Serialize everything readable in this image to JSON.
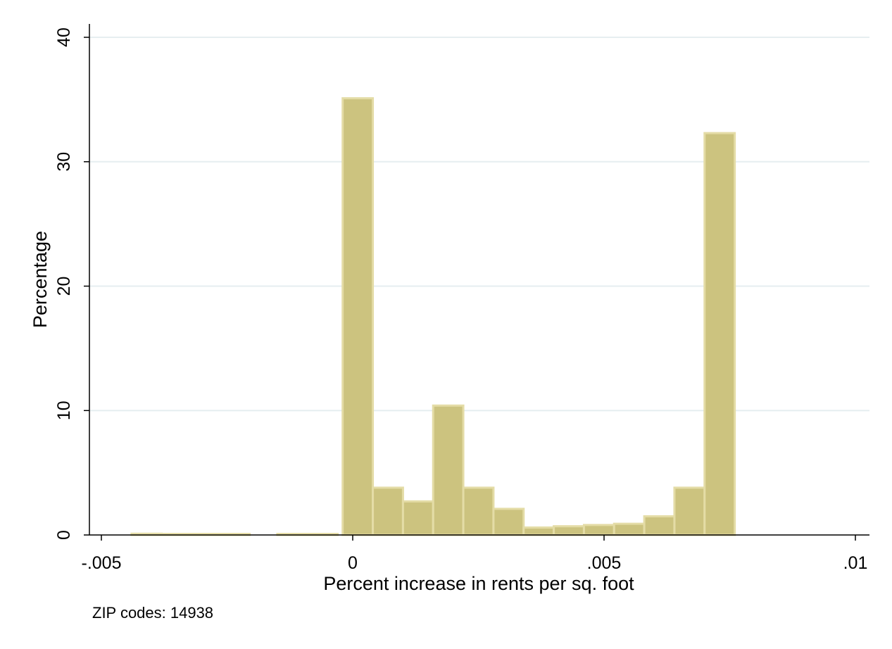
{
  "chart_data": {
    "type": "bar",
    "subtype": "histogram",
    "xlabel": "Percent increase in rents per sq. foot",
    "ylabel": "Percentage",
    "note": "ZIP codes: 14938",
    "xlim": [
      -0.0055,
      0.0102
    ],
    "ylim": [
      0,
      40
    ],
    "x_ticks": [
      {
        "value": -0.005,
        "label": "-.005"
      },
      {
        "value": 0,
        "label": "0"
      },
      {
        "value": 0.005,
        "label": ".005"
      },
      {
        "value": 0.01,
        "label": ".01"
      }
    ],
    "y_ticks": [
      {
        "value": 0,
        "label": "0"
      },
      {
        "value": 10,
        "label": "10"
      },
      {
        "value": 20,
        "label": "20"
      },
      {
        "value": 30,
        "label": "30"
      },
      {
        "value": 40,
        "label": "40"
      }
    ],
    "grid": true,
    "bar_fill": "#ccc37f",
    "bar_edge": "#e4dca6",
    "bins": [
      {
        "x0": -0.0044,
        "x1": -0.0038,
        "value": 0.1
      },
      {
        "x0": -0.0038,
        "x1": -0.0032,
        "value": 0.05
      },
      {
        "x0": -0.0032,
        "x1": -0.0026,
        "value": 0.05
      },
      {
        "x0": -0.0026,
        "x1": -0.00205,
        "value": 0.05
      },
      {
        "x0": -0.0015,
        "x1": -0.0009,
        "value": 0.05
      },
      {
        "x0": -0.0009,
        "x1": -0.0003,
        "value": 0.05
      },
      {
        "x0": -0.0002,
        "x1": 0.0004,
        "value": 35.1
      },
      {
        "x0": 0.0004,
        "x1": 0.001,
        "value": 3.8
      },
      {
        "x0": 0.001,
        "x1": 0.0016,
        "value": 2.7
      },
      {
        "x0": 0.0016,
        "x1": 0.0022,
        "value": 10.4
      },
      {
        "x0": 0.0022,
        "x1": 0.0028,
        "value": 3.8
      },
      {
        "x0": 0.0028,
        "x1": 0.0034,
        "value": 2.1
      },
      {
        "x0": 0.0034,
        "x1": 0.004,
        "value": 0.6
      },
      {
        "x0": 0.004,
        "x1": 0.0046,
        "value": 0.7
      },
      {
        "x0": 0.0046,
        "x1": 0.0052,
        "value": 0.8
      },
      {
        "x0": 0.0052,
        "x1": 0.0058,
        "value": 0.9
      },
      {
        "x0": 0.0058,
        "x1": 0.0064,
        "value": 1.5
      },
      {
        "x0": 0.0064,
        "x1": 0.007,
        "value": 3.8
      },
      {
        "x0": 0.007,
        "x1": 0.0076,
        "value": 32.3
      }
    ]
  }
}
